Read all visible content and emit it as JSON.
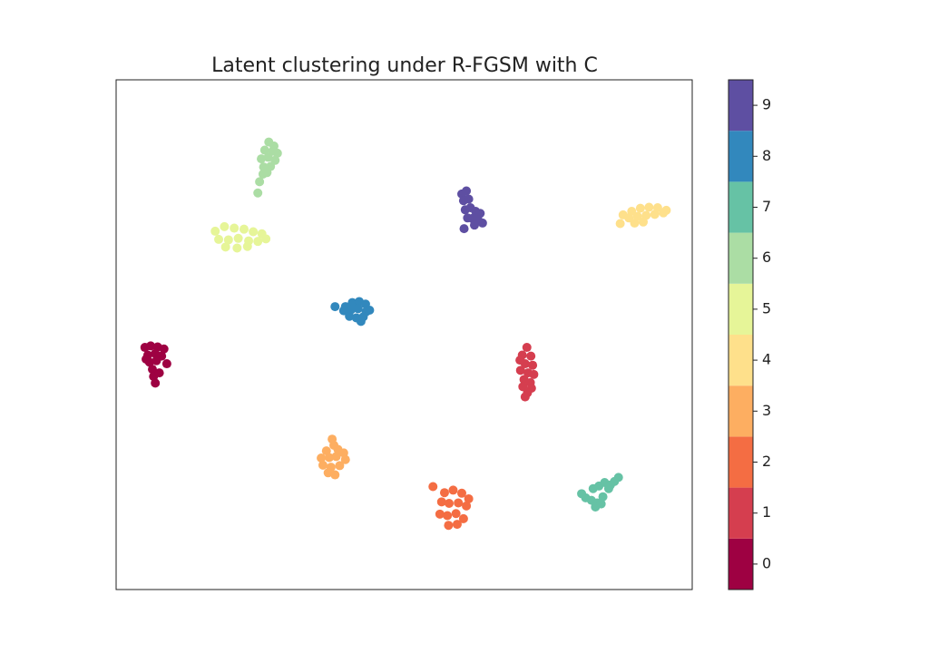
{
  "chart_data": {
    "type": "scatter",
    "title": "Latent clustering under R-FGSM with C",
    "xlim": [
      0,
      100
    ],
    "ylim": [
      0,
      100
    ],
    "clim": [
      -0.5,
      9.5
    ],
    "cticks": [
      0,
      1,
      2,
      3,
      4,
      5,
      6,
      7,
      8,
      9
    ],
    "series": [
      {
        "color": "#9e0142",
        "x": [
          5.0,
          6.0,
          7.2,
          8.3,
          5.5,
          6.8,
          7.9,
          5.8,
          7.0,
          6.3,
          8.8,
          6.5,
          7.5,
          5.2,
          6.8
        ],
        "y": [
          47.5,
          47.8,
          47.6,
          47.2,
          46.0,
          46.3,
          45.8,
          44.6,
          44.9,
          43.2,
          44.3,
          41.8,
          42.5,
          45.2,
          40.5
        ]
      },
      {
        "color": "#d53e4f",
        "x": [
          71.3,
          70.5,
          72.0,
          71.0,
          72.3,
          70.2,
          71.5,
          72.5,
          70.8,
          71.9,
          70.6,
          72.1,
          71.4,
          71.0,
          70.1
        ],
        "y": [
          47.5,
          46.0,
          45.8,
          44.3,
          44.0,
          43.0,
          42.5,
          42.2,
          41.2,
          40.6,
          39.8,
          39.5,
          38.6,
          37.8,
          45.0
        ]
      },
      {
        "color": "#f46d43",
        "x": [
          57.0,
          58.5,
          60.0,
          61.2,
          56.5,
          57.8,
          59.4,
          60.8,
          56.2,
          57.5,
          59.0,
          60.3,
          57.7,
          59.2,
          55.0
        ],
        "y": [
          19.0,
          19.5,
          18.9,
          17.8,
          17.2,
          16.9,
          17.0,
          16.4,
          14.8,
          14.5,
          14.9,
          13.9,
          12.6,
          12.8,
          20.2
        ]
      },
      {
        "color": "#fdae61",
        "x": [
          37.8,
          36.5,
          38.5,
          39.5,
          35.6,
          37.0,
          38.2,
          39.8,
          35.9,
          37.3,
          38.8,
          36.8,
          38.0,
          37.5
        ],
        "y": [
          28.3,
          27.2,
          27.5,
          26.8,
          25.8,
          25.9,
          26.1,
          25.5,
          24.4,
          24.0,
          24.3,
          22.9,
          22.5,
          29.5
        ]
      },
      {
        "color": "#fee08b",
        "x": [
          88.0,
          89.5,
          91.0,
          92.5,
          94.0,
          95.5,
          89.0,
          90.5,
          92.0,
          93.5,
          95.0,
          90.0,
          91.5,
          87.5
        ],
        "y": [
          73.5,
          74.2,
          74.8,
          75.0,
          74.9,
          74.4,
          72.9,
          73.2,
          73.4,
          73.6,
          73.9,
          71.9,
          72.1,
          71.8
        ]
      },
      {
        "color": "#e6f598",
        "x": [
          17.2,
          18.8,
          20.5,
          22.2,
          23.8,
          25.3,
          17.8,
          19.5,
          21.2,
          23.0,
          24.6,
          19.0,
          21.0,
          22.8,
          26.0
        ],
        "y": [
          70.3,
          71.2,
          70.9,
          70.7,
          70.2,
          69.8,
          68.7,
          68.6,
          68.9,
          68.4,
          68.3,
          67.2,
          67.0,
          67.3,
          68.8
        ]
      },
      {
        "color": "#abdda4",
        "x": [
          26.5,
          27.4,
          25.8,
          27.2,
          28.0,
          25.2,
          26.4,
          27.6,
          25.6,
          26.8,
          25.5,
          26.2,
          24.9,
          24.6
        ],
        "y": [
          87.8,
          87.0,
          86.2,
          86.0,
          85.6,
          84.5,
          84.8,
          84.2,
          82.9,
          83.0,
          81.5,
          81.8,
          80.0,
          77.8
        ]
      },
      {
        "color": "#66c2a5",
        "x": [
          81.5,
          82.5,
          83.5,
          84.5,
          85.5,
          86.5,
          87.2,
          82.8,
          83.8,
          84.8,
          85.8,
          83.2,
          84.2,
          80.8
        ],
        "y": [
          18.0,
          17.5,
          17.0,
          18.2,
          19.8,
          21.2,
          22.0,
          19.8,
          20.3,
          21.0,
          20.5,
          16.2,
          16.8,
          18.8
        ]
      },
      {
        "color": "#3288bd",
        "x": [
          39.8,
          41.0,
          42.2,
          43.3,
          39.5,
          40.8,
          42.0,
          43.4,
          44.0,
          40.5,
          41.7,
          42.9,
          38.0,
          42.5
        ],
        "y": [
          55.5,
          56.3,
          56.5,
          56.0,
          54.7,
          54.9,
          55.1,
          54.5,
          54.8,
          53.6,
          53.3,
          53.5,
          55.5,
          52.6
        ]
      },
      {
        "color": "#5e4fa2",
        "x": [
          60.0,
          60.8,
          60.3,
          61.2,
          60.6,
          61.5,
          62.4,
          63.2,
          61.8,
          62.8,
          63.6,
          62.2,
          60.4,
          61.0
        ],
        "y": [
          77.6,
          78.2,
          76.3,
          76.6,
          74.5,
          74.9,
          74.2,
          73.8,
          72.8,
          72.6,
          71.9,
          71.5,
          70.8,
          72.9
        ]
      }
    ]
  }
}
